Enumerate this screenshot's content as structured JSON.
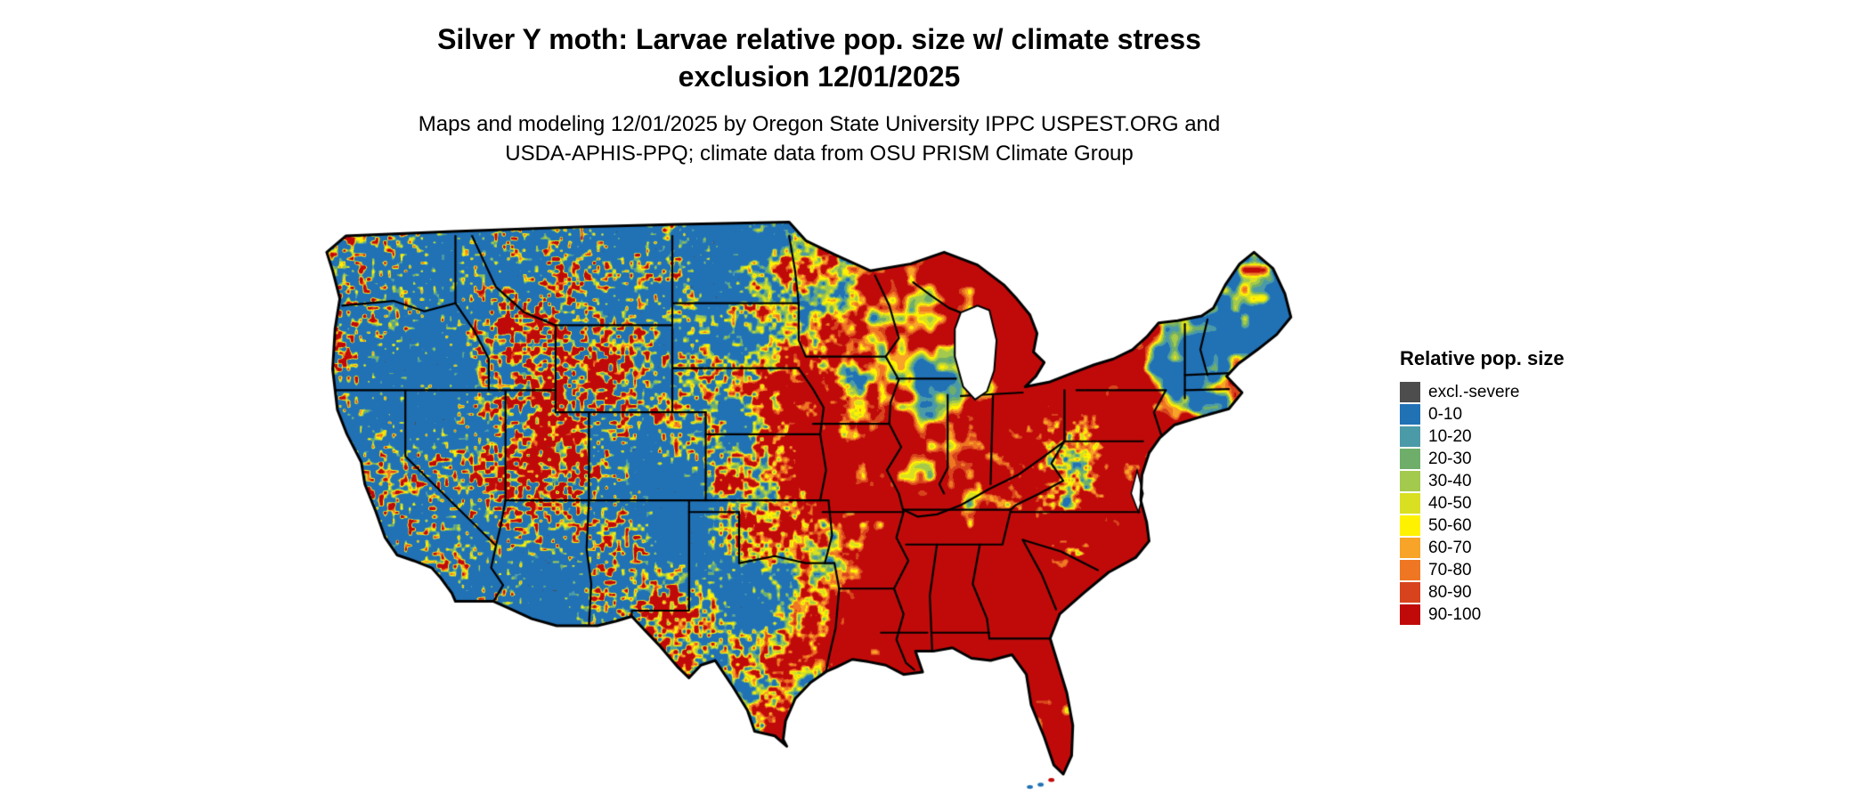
{
  "header": {
    "title_line1": "Silver Y moth: Larvae relative pop. size w/ climate stress",
    "title_line2": "exclusion 12/01/2025",
    "subtitle_line1": "Maps and modeling 12/01/2025 by Oregon State University IPPC USPEST.ORG and",
    "subtitle_line2": "USDA-APHIS-PPQ; climate data from OSU PRISM Climate Group"
  },
  "map": {
    "region": "Continental United States",
    "background_color": "#ffffff",
    "border_color": "#000000"
  },
  "legend": {
    "title": "Relative pop. size",
    "items": [
      {
        "label": "excl.-severe",
        "color": "#4d4d4d"
      },
      {
        "label": "0-10",
        "color": "#2171b5"
      },
      {
        "label": "10-20",
        "color": "#4b9aa8"
      },
      {
        "label": "20-30",
        "color": "#6fae6a"
      },
      {
        "label": "30-40",
        "color": "#a3c94d"
      },
      {
        "label": "40-50",
        "color": "#d9e021"
      },
      {
        "label": "50-60",
        "color": "#fff200"
      },
      {
        "label": "60-70",
        "color": "#f7a428"
      },
      {
        "label": "70-80",
        "color": "#ef7622"
      },
      {
        "label": "80-90",
        "color": "#d7431d"
      },
      {
        "label": "90-100",
        "color": "#c00a0a"
      }
    ]
  }
}
